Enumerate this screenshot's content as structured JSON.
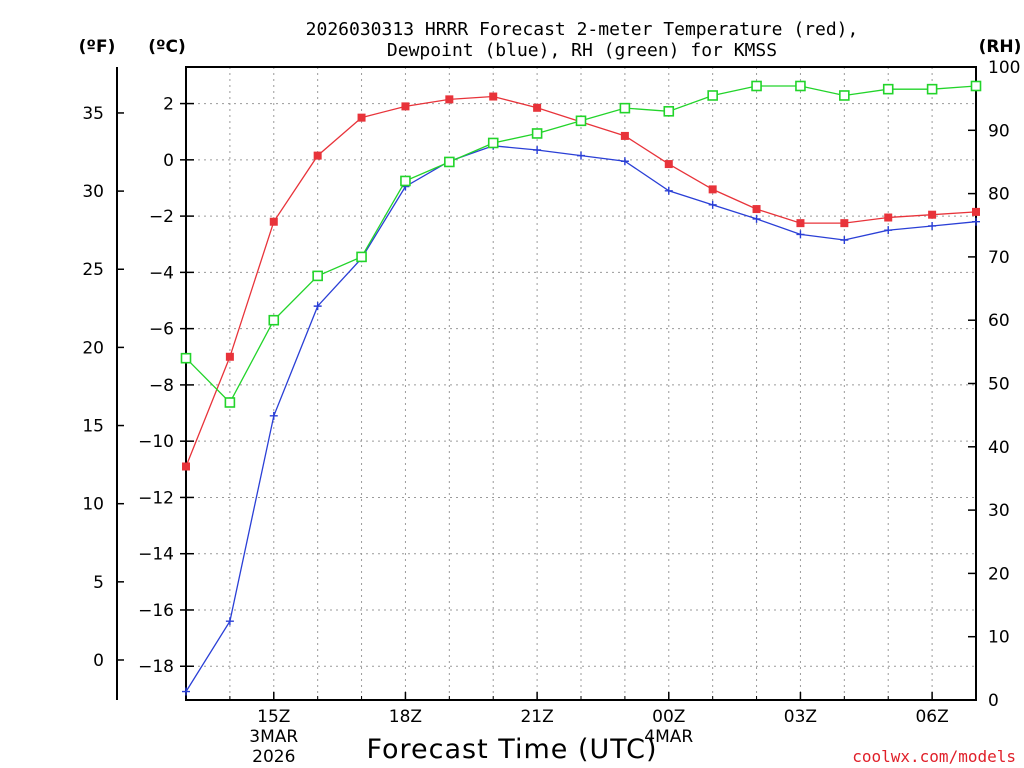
{
  "chart_data": {
    "type": "line",
    "title": [
      "2026030313 HRRR Forecast 2-meter Temperature (red),",
      "Dewpoint (blue), RH (green) for KMSS"
    ],
    "xlabel": "Forecast Time (UTC)",
    "credit": "coolwx.com/models",
    "credit_color": "#e0202a",
    "units": {
      "fahrenheit": "(ºF)",
      "celsius": "(ºC)",
      "rh": "(RH)"
    },
    "x_hours": [
      13,
      14,
      15,
      16,
      17,
      18,
      19,
      20,
      21,
      22,
      23,
      24,
      25,
      26,
      27,
      28,
      29,
      30,
      31
    ],
    "xlim": [
      13,
      31
    ],
    "x_ticks": [
      {
        "x": 15,
        "label": "15Z",
        "date": [
          "3MAR",
          "2026"
        ]
      },
      {
        "x": 18,
        "label": "18Z",
        "date": []
      },
      {
        "x": 21,
        "label": "21Z",
        "date": []
      },
      {
        "x": 24,
        "label": "00Z",
        "date": [
          "4MAR"
        ]
      },
      {
        "x": 27,
        "label": "03Z",
        "date": []
      },
      {
        "x": 30,
        "label": "06Z",
        "date": []
      }
    ],
    "y_celsius": {
      "lim": [
        -19.2,
        3.3
      ],
      "ticks": [
        -18,
        -16,
        -14,
        -12,
        -10,
        -8,
        -6,
        -4,
        -2,
        0,
        2
      ],
      "tick_labels": [
        "−18",
        "−16",
        "−14",
        "−12",
        "−10",
        "−8",
        "−6",
        "−4",
        "−2",
        "0",
        "2"
      ]
    },
    "y_fahrenheit": {
      "ticks": [
        0,
        5,
        10,
        15,
        20,
        25,
        30,
        35
      ],
      "tick_labels": [
        "0",
        "5",
        "10",
        "15",
        "20",
        "25",
        "30",
        "35"
      ]
    },
    "y_rh": {
      "lim": [
        0,
        100
      ],
      "ticks": [
        0,
        10,
        20,
        30,
        40,
        50,
        60,
        70,
        80,
        90,
        100
      ],
      "tick_labels": [
        "0",
        "10",
        "20",
        "30",
        "40",
        "50",
        "60",
        "70",
        "80",
        "90",
        "100"
      ]
    },
    "grid": true,
    "series": [
      {
        "name": "2-meter Temperature",
        "color": "#e8333a",
        "marker": "square-filled",
        "axis": "celsius",
        "values": [
          -10.9,
          -7.0,
          -2.2,
          0.15,
          1.5,
          1.9,
          2.15,
          2.25,
          1.85,
          1.35,
          0.85,
          -0.15,
          -1.05,
          -1.75,
          -2.25,
          -2.25,
          -2.05,
          -1.95,
          -1.85
        ]
      },
      {
        "name": "Dewpoint",
        "color": "#2a3fd6",
        "marker": "plus",
        "axis": "celsius",
        "values": [
          -18.9,
          -16.4,
          -9.1,
          -5.2,
          -3.5,
          -0.95,
          -0.05,
          0.5,
          0.35,
          0.15,
          -0.05,
          -1.1,
          -1.6,
          -2.1,
          -2.65,
          -2.85,
          -2.5,
          -2.35,
          -2.2
        ]
      },
      {
        "name": "RH",
        "color": "#22d42a",
        "marker": "square-open",
        "axis": "rh",
        "values": [
          54,
          47,
          60,
          67,
          70,
          82,
          85,
          88,
          89.5,
          91.5,
          93.5,
          93,
          95.5,
          97,
          97,
          95.5,
          96.5,
          96.5,
          97
        ]
      }
    ]
  }
}
